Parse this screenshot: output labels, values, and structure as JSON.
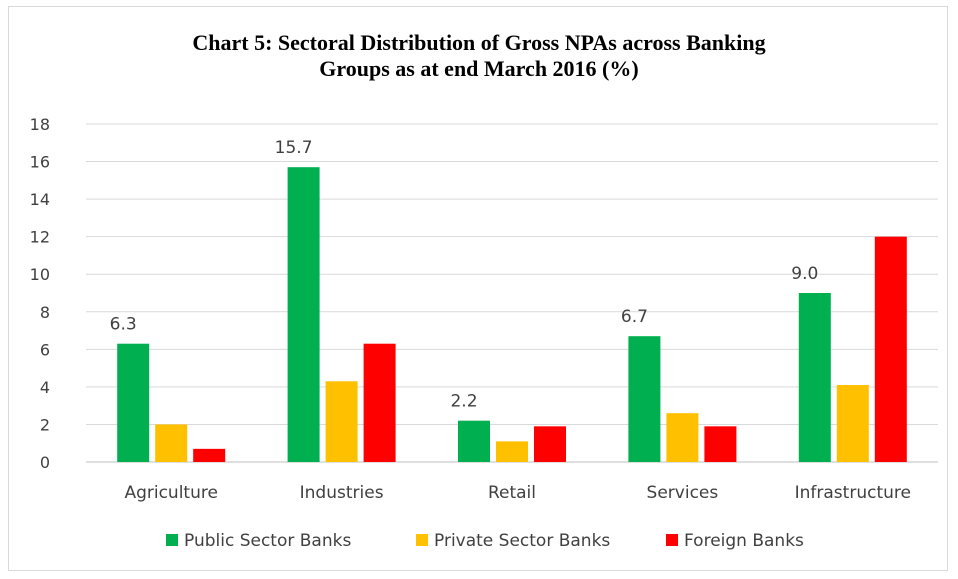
{
  "chart_data": {
    "type": "bar",
    "title_lines": [
      "Chart 5: Sectoral Distribution of Gross NPAs across Banking",
      "Groups as at end March 2016 (%)"
    ],
    "categories": [
      "Agriculture",
      "Industries",
      "Retail",
      "Services",
      "Infrastructure"
    ],
    "series": [
      {
        "name": "Public Sector Banks",
        "color": "#00b050",
        "values": [
          6.3,
          15.7,
          2.2,
          6.7,
          9.0
        ],
        "data_labels": [
          "6.3",
          "15.7",
          "2.2",
          "6.7",
          "9.0"
        ]
      },
      {
        "name": "Private Sector Banks",
        "color": "#ffc000",
        "values": [
          2.0,
          4.3,
          1.1,
          2.6,
          4.1
        ]
      },
      {
        "name": "Foreign Banks",
        "color": "#ff0000",
        "values": [
          0.7,
          6.3,
          1.9,
          1.9,
          12.0
        ]
      }
    ],
    "ylim": [
      0,
      18
    ],
    "yticks": [
      0,
      2,
      4,
      6,
      8,
      10,
      12,
      14,
      16,
      18
    ],
    "grid": true,
    "legend_position": "bottom"
  }
}
